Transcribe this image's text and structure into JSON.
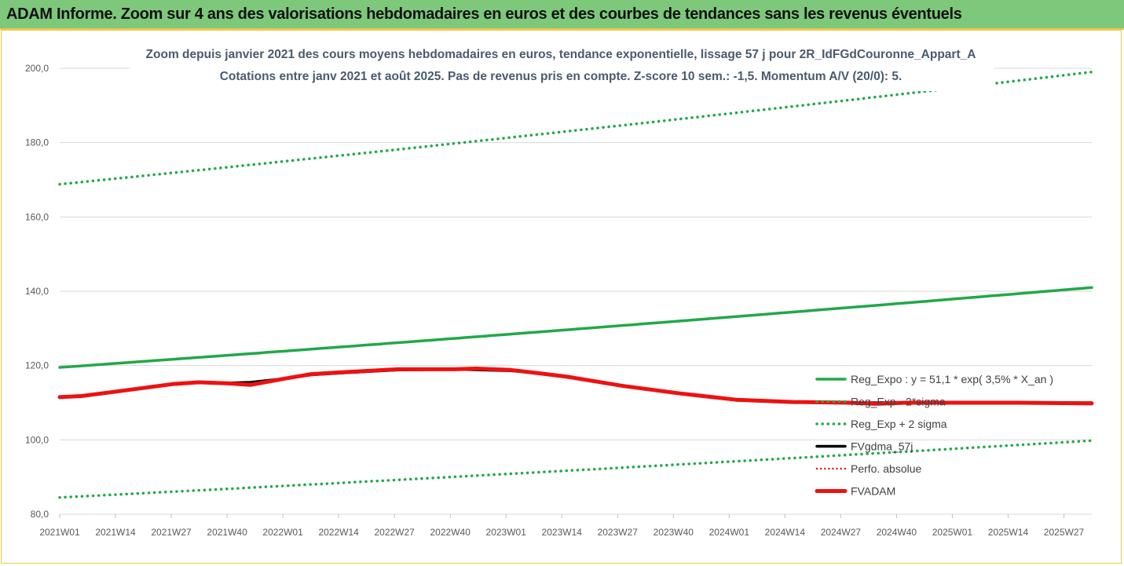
{
  "header": {
    "banner": "ADAM Informe. Zoom sur 4 ans des valorisations hebdomadaires en euros et des courbes de tendances sans les revenus éventuels"
  },
  "colors": {
    "banner_bg": "#7dc87a",
    "frame_border": "#f3c64a",
    "reg_expo": "#22a84a",
    "fvgdma": "#000000",
    "perfo": "#e81b1b",
    "fvadam": "#ee1111",
    "grid": "#d9d9d9"
  },
  "chart_data": {
    "type": "line",
    "title": "Zoom depuis janvier 2021 des cours moyens hebdomadaires en euros, tendance exponentielle, lissage 57 j pour 2R_IdFGdCouronne_Appart_A",
    "subtitle": "Cotations entre janv 2021 et août 2025.  Pas de revenus pris en compte. Z-score 10 sem.: -1,5. Momentum A/V (20/0): 5.",
    "x_ticks": [
      "2021W01",
      "2021W14",
      "2021W27",
      "2021W40",
      "2022W01",
      "2022W14",
      "2022W27",
      "2022W40",
      "2023W01",
      "2023W14",
      "2023W27",
      "2023W40",
      "2024W01",
      "2024W14",
      "2024W27",
      "2024W40",
      "2025W01",
      "2025W14",
      "2025W27"
    ],
    "x_range_weeks": [
      0,
      238
    ],
    "ylim": [
      80,
      200
    ],
    "y_ticks": [
      "80,0",
      "100,0",
      "120,0",
      "140,0",
      "160,0",
      "180,0",
      "200,0"
    ],
    "y_tick_values": [
      80,
      100,
      120,
      140,
      160,
      180,
      200
    ],
    "grid": "horizontal",
    "legend_position": "bottom-right",
    "series": [
      {
        "name": "Reg_Expo : y = 51,1 * exp( 3,5% *  X_an )",
        "style": "solid",
        "endpoints": {
          "week": [
            0,
            238
          ],
          "value": [
            119.5,
            141.0
          ]
        }
      },
      {
        "name": "Reg_Exp - 2*sigma",
        "style": "dotted",
        "endpoints": {
          "week": [
            0,
            238
          ],
          "value": [
            84.5,
            99.8
          ]
        }
      },
      {
        "name": "Reg_Exp + 2 sigma",
        "style": "dotted",
        "endpoints": {
          "week": [
            0,
            238
          ],
          "value": [
            168.8,
            199.0
          ]
        }
      },
      {
        "name": "FVgdma_57j",
        "style": "solid",
        "points": [
          [
            0,
            111.5
          ],
          [
            5,
            111.8
          ],
          [
            13,
            113.0
          ],
          [
            26,
            115.0
          ],
          [
            32,
            115.5
          ],
          [
            39,
            115.3
          ],
          [
            44,
            115.5
          ],
          [
            52,
            116.5
          ],
          [
            58,
            117.5
          ],
          [
            65,
            118.0
          ],
          [
            78,
            118.8
          ],
          [
            91,
            119.0
          ],
          [
            104,
            118.6
          ],
          [
            110,
            118.0
          ],
          [
            117,
            117.0
          ],
          [
            130,
            114.5
          ],
          [
            143,
            112.5
          ],
          [
            156,
            110.7
          ],
          [
            169,
            110.2
          ],
          [
            182,
            110.0
          ],
          [
            195,
            110.0
          ],
          [
            208,
            110.0
          ],
          [
            221,
            110.0
          ],
          [
            238,
            110.0
          ]
        ]
      },
      {
        "name": "Perfo. absolue",
        "style": "dotted",
        "points": []
      },
      {
        "name": "FVADAM",
        "style": "solid-thick",
        "points": [
          [
            0,
            111.5
          ],
          [
            5,
            111.8
          ],
          [
            13,
            113.0
          ],
          [
            26,
            115.0
          ],
          [
            32,
            115.5
          ],
          [
            39,
            115.2
          ],
          [
            44,
            114.8
          ],
          [
            52,
            116.5
          ],
          [
            58,
            117.7
          ],
          [
            65,
            118.2
          ],
          [
            78,
            119.0
          ],
          [
            91,
            119.0
          ],
          [
            96,
            119.2
          ],
          [
            104,
            118.8
          ],
          [
            110,
            118.0
          ],
          [
            117,
            117.0
          ],
          [
            130,
            114.5
          ],
          [
            143,
            112.5
          ],
          [
            156,
            110.8
          ],
          [
            169,
            110.2
          ],
          [
            182,
            110.0
          ],
          [
            188,
            109.7
          ],
          [
            195,
            110.0
          ],
          [
            208,
            110.0
          ],
          [
            221,
            110.0
          ],
          [
            238,
            109.8
          ]
        ]
      }
    ]
  }
}
